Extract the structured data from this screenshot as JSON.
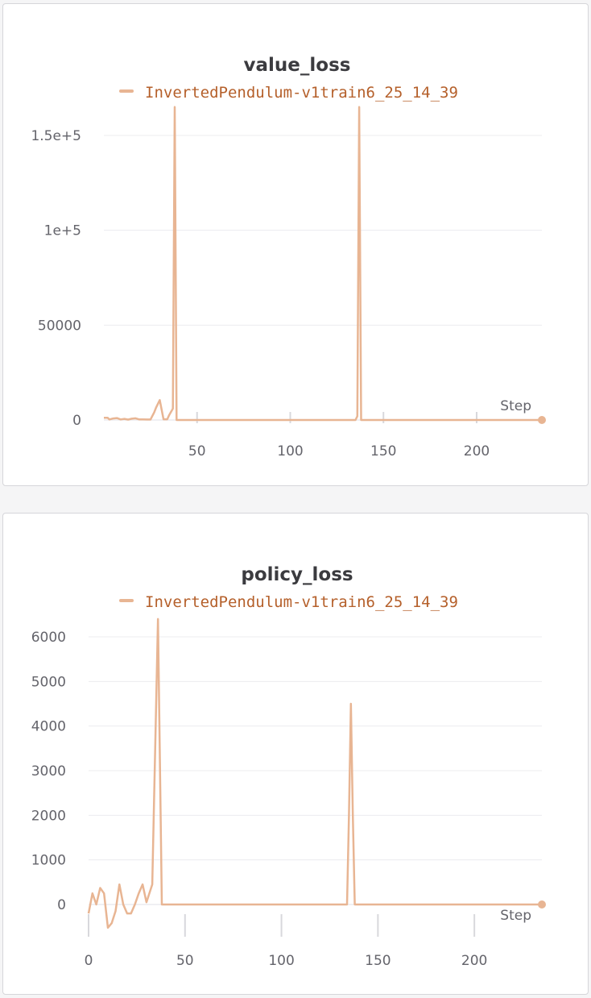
{
  "colors": {
    "series": "#e8b593",
    "legend_text": "#b5602b",
    "grid": "#ececef",
    "axis_tick": "#d8d8dc"
  },
  "chart_data": [
    {
      "type": "line",
      "title": "value_loss",
      "xlabel": "Step",
      "ylabel": "",
      "legend": "top",
      "grid": true,
      "xlim": [
        0,
        235
      ],
      "ylim": [
        0,
        165000
      ],
      "xticks": [
        50,
        100,
        150,
        200
      ],
      "xtick_labels": [
        "50",
        "100",
        "150",
        "200"
      ],
      "yticks": [
        0,
        50000,
        100000,
        150000
      ],
      "ytick_labels": [
        "0",
        "50000",
        "1e+5",
        "1.5e+5"
      ],
      "series": [
        {
          "name": "InvertedPendulum-v1train6_25_14_39",
          "x": [
            0,
            2,
            3,
            5,
            7,
            9,
            11,
            13,
            15,
            17,
            19,
            21,
            23,
            25,
            27,
            28,
            30,
            32,
            34,
            35,
            37,
            38,
            39,
            40,
            50,
            100,
            134,
            135,
            136,
            137,
            138,
            139,
            140,
            150,
            200,
            235
          ],
          "y": [
            1200,
            1200,
            300,
            800,
            1000,
            300,
            600,
            200,
            700,
            900,
            300,
            300,
            250,
            250,
            4000,
            6500,
            10500,
            400,
            400,
            2500,
            6000,
            165000,
            0,
            0,
            0,
            0,
            0,
            0,
            2000,
            165000,
            0,
            0,
            0,
            0,
            0,
            0
          ]
        }
      ]
    },
    {
      "type": "line",
      "title": "policy_loss",
      "xlabel": "Step",
      "ylabel": "",
      "legend": "top",
      "grid": true,
      "xlim": [
        0,
        235
      ],
      "ylim": [
        -700,
        6400
      ],
      "xticks": [
        0,
        50,
        100,
        150,
        200
      ],
      "xtick_labels": [
        "0",
        "50",
        "100",
        "150",
        "200"
      ],
      "yticks": [
        0,
        1000,
        2000,
        3000,
        4000,
        5000,
        6000
      ],
      "ytick_labels": [
        "0",
        "1000",
        "2000",
        "3000",
        "4000",
        "5000",
        "6000"
      ],
      "series": [
        {
          "name": "InvertedPendulum-v1train6_25_14_39",
          "x": [
            0,
            2,
            4,
            6,
            8,
            10,
            12,
            14,
            16,
            18,
            20,
            22,
            24,
            26,
            28,
            30,
            33,
            36,
            38,
            40,
            50,
            100,
            134,
            135,
            136,
            137,
            138,
            140,
            150,
            200,
            235
          ],
          "y": [
            -200,
            250,
            0,
            370,
            250,
            -520,
            -420,
            -150,
            450,
            0,
            -200,
            -200,
            0,
            250,
            450,
            50,
            450,
            6400,
            0,
            0,
            0,
            0,
            0,
            2000,
            4500,
            2000,
            0,
            0,
            0,
            0,
            0
          ]
        }
      ]
    }
  ]
}
